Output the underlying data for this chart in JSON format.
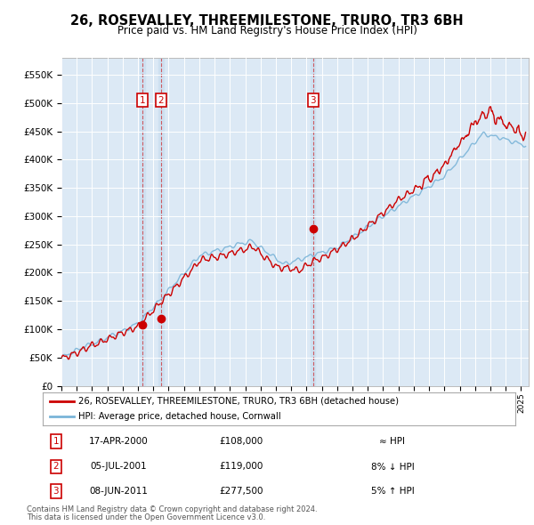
{
  "title": "26, ROSEVALLEY, THREEMILESTONE, TRURO, TR3 6BH",
  "subtitle": "Price paid vs. HM Land Registry's House Price Index (HPI)",
  "background_color": "#dce9f5",
  "plot_bg_color": "#dce9f5",
  "legend_line1": "26, ROSEVALLEY, THREEMILESTONE, TRURO, TR3 6BH (detached house)",
  "legend_line2": "HPI: Average price, detached house, Cornwall",
  "transactions": [
    {
      "num": 1,
      "date": "17-APR-2000",
      "price": 108000,
      "rel": "≈ HPI",
      "x": 2000.29
    },
    {
      "num": 2,
      "date": "05-JUL-2001",
      "price": 119000,
      "rel": "8% ↓ HPI",
      "x": 2001.51
    },
    {
      "num": 3,
      "date": "08-JUN-2011",
      "price": 277500,
      "rel": "5% ↑ HPI",
      "x": 2011.43
    }
  ],
  "footnote1": "Contains HM Land Registry data © Crown copyright and database right 2024.",
  "footnote2": "This data is licensed under the Open Government Licence v3.0.",
  "xmin": 1995.0,
  "xmax": 2025.5,
  "ymin": 0,
  "ymax": 580000,
  "yticks": [
    0,
    50000,
    100000,
    150000,
    200000,
    250000,
    300000,
    350000,
    400000,
    450000,
    500000,
    550000
  ],
  "ytick_labels": [
    "£0",
    "£50K",
    "£100K",
    "£150K",
    "£200K",
    "£250K",
    "£300K",
    "£350K",
    "£400K",
    "£450K",
    "£500K",
    "£550K"
  ],
  "hpi_color": "#7ab4d8",
  "prop_color": "#cc0000",
  "vline_color": "#cc0000",
  "highlight_color": "#cce0f0"
}
